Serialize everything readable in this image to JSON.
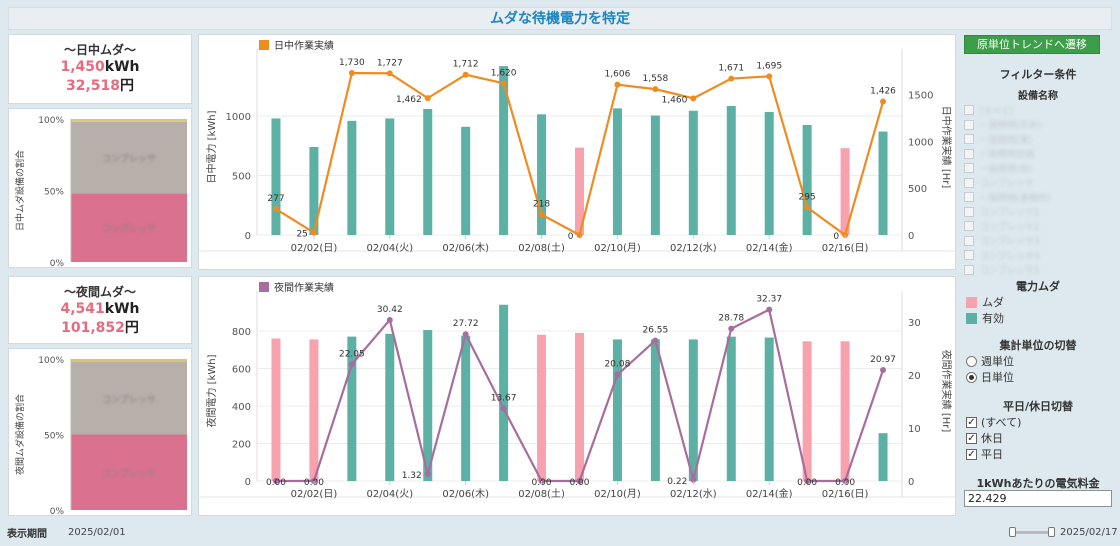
{
  "page": {
    "title": "ムダな待機電力を特定"
  },
  "day_summary": {
    "title": "～日中ムダ～",
    "kwh": "1,450",
    "kwh_unit": "kWh",
    "yen": "32,518",
    "yen_unit": "円"
  },
  "night_summary": {
    "title": "～夜間ムダ～",
    "kwh": "4,541",
    "kwh_unit": "kWh",
    "yen": "101,852",
    "yen_unit": "円"
  },
  "day_ratio": {
    "ylabel": "日中ムダ設備の割合",
    "ticks": [
      "100%",
      "50%",
      "0%"
    ],
    "segments": [
      {
        "label": "コンプレッサ",
        "value": 0.48,
        "color": "#d9718f"
      },
      {
        "label": "コンプレッサ",
        "value": 0.5,
        "color": "#b7afaa"
      },
      {
        "label": "",
        "value": 0.01,
        "color": "#c8c7a0"
      },
      {
        "label": "",
        "value": 0.01,
        "color": "#e8c24d"
      }
    ]
  },
  "night_ratio": {
    "ylabel": "夜間ムダ設備の割合",
    "ticks": [
      "100%",
      "50%",
      "0%"
    ],
    "segments": [
      {
        "label": "コンプレッサ",
        "value": 0.5,
        "color": "#d9718f"
      },
      {
        "label": "コンプレッサ",
        "value": 0.48,
        "color": "#b7afaa"
      },
      {
        "label": "",
        "value": 0.01,
        "color": "#c8c7a0"
      },
      {
        "label": "",
        "value": 0.01,
        "color": "#e8c24d"
      }
    ]
  },
  "chart_data": [
    {
      "type": "bar",
      "name": "day",
      "title": "日中作業実績",
      "legend_color": "#ef8c21",
      "line_color": "#ef8c21",
      "ylabel": "日中電力 [kWh]",
      "y2label": "日中作業実績 [Hr]",
      "ylim": [
        0,
        1480
      ],
      "yticks": [
        0,
        500,
        1000
      ],
      "y2lim": [
        0,
        1880
      ],
      "y2ticks": [
        0,
        500,
        1000,
        1500
      ],
      "xtick_labels": [
        {
          "i": 2,
          "label": "02/02(日)"
        },
        {
          "i": 4,
          "label": "02/04(火)"
        },
        {
          "i": 6,
          "label": "02/06(木)"
        },
        {
          "i": 8,
          "label": "02/08(土)"
        },
        {
          "i": 10,
          "label": "02/10(月)"
        },
        {
          "i": 12,
          "label": "02/12(水)"
        },
        {
          "i": 14,
          "label": "02/14(金)"
        },
        {
          "i": 16,
          "label": "02/16(日)"
        }
      ],
      "days": [
        "02/01",
        "02/02",
        "02/03",
        "02/04",
        "02/05",
        "02/06",
        "02/07",
        "02/08",
        "02/09",
        "02/10",
        "02/11",
        "02/12",
        "02/13",
        "02/14",
        "02/15",
        "02/16",
        "02/17"
      ],
      "bars": [
        980,
        740,
        960,
        980,
        1060,
        910,
        1420,
        1015,
        735,
        1065,
        1005,
        1045,
        1085,
        1035,
        925,
        730,
        870
      ],
      "bar_types": [
        "有効",
        "有効",
        "有効",
        "有効",
        "有効",
        "有効",
        "有効",
        "有効",
        "ムダ",
        "有効",
        "有効",
        "有効",
        "有効",
        "有効",
        "有効",
        "ムダ",
        "有効"
      ],
      "line": [
        277,
        25,
        1730,
        1727,
        1462,
        1712,
        1620,
        218,
        0,
        1606,
        1558,
        1460,
        1671,
        1695,
        295,
        0,
        1426
      ],
      "line_labels": [
        "277",
        "25",
        "1,730",
        "1,727",
        "1,462",
        "1,712",
        "1,620",
        "218",
        "0",
        "1,606",
        "1,558",
        "1,460",
        "1,671",
        "1,695",
        "295",
        "0",
        "1,426"
      ]
    },
    {
      "type": "bar",
      "name": "night",
      "title": "夜間作業実績",
      "legend_color": "#a76d9f",
      "line_color": "#a76d9f",
      "ylabel": "夜間電力 [kWh]",
      "y2label": "夜間作業実績 [Hr]",
      "ylim": [
        0,
        960
      ],
      "yticks": [
        0,
        200,
        400,
        600,
        800
      ],
      "y2lim": [
        0,
        34
      ],
      "y2ticks": [
        0,
        10,
        20,
        30
      ],
      "xtick_labels": [
        {
          "i": 2,
          "label": "02/02(日)"
        },
        {
          "i": 4,
          "label": "02/04(火)"
        },
        {
          "i": 6,
          "label": "02/06(木)"
        },
        {
          "i": 8,
          "label": "02/08(土)"
        },
        {
          "i": 10,
          "label": "02/10(月)"
        },
        {
          "i": 12,
          "label": "02/12(水)"
        },
        {
          "i": 14,
          "label": "02/14(金)"
        },
        {
          "i": 16,
          "label": "02/16(日)"
        }
      ],
      "days": [
        "02/01",
        "02/02",
        "02/03",
        "02/04",
        "02/05",
        "02/06",
        "02/07",
        "02/08",
        "02/09",
        "02/10",
        "02/11",
        "02/12",
        "02/13",
        "02/14",
        "02/15",
        "02/16",
        "02/17"
      ],
      "bars": [
        760,
        755,
        770,
        785,
        805,
        775,
        940,
        780,
        790,
        755,
        755,
        755,
        770,
        765,
        745,
        745,
        255
      ],
      "bar_types": [
        "ムダ",
        "ムダ",
        "有効",
        "有効",
        "有効",
        "有効",
        "有効",
        "ムダ",
        "ムダ",
        "有効",
        "有効",
        "有効",
        "有効",
        "有効",
        "ムダ",
        "ムダ",
        "有効"
      ],
      "line": [
        0.0,
        0.0,
        22.05,
        30.42,
        1.32,
        27.72,
        13.67,
        0.0,
        0.0,
        20.08,
        26.55,
        0.22,
        28.78,
        32.37,
        0.0,
        0.0,
        20.97
      ],
      "line_labels": [
        "0.00",
        "0.00",
        "22.05",
        "30.42",
        "1.32",
        "27.72",
        "13.67",
        "0.00",
        "0.00",
        "20.08",
        "26.55",
        "0.22",
        "28.78",
        "32.37",
        "0.00",
        "0.00",
        "20.97"
      ]
    }
  ],
  "right_pane": {
    "trend_button": "原単位トレンドへ遷移",
    "filter_title": "フィルター条件",
    "equipment_title": "設備名称",
    "equipment_items": [
      "(すべて)",
      "一般照明(中央)",
      "一般照明(東)",
      "一般照明空調",
      "一般照明(西)",
      "コンプレッサ",
      "一般照明(事務所)",
      "コンプレッサ1",
      "コンプレッサ2",
      "コンプレッサ3",
      "コンプレッサ4",
      "コンプレッサ5"
    ],
    "power_title": "電力ムダ",
    "legend": [
      {
        "label": "ムダ",
        "color": "#f7a2ad"
      },
      {
        "label": "有効",
        "color": "#5cb0a4"
      }
    ],
    "unit_title": "集計単位の切替",
    "unit_options": [
      {
        "label": "週単位",
        "selected": false
      },
      {
        "label": "日単位",
        "selected": true
      }
    ],
    "daytype_title": "平日/休日切替",
    "daytype_options": [
      {
        "label": "(すべて)",
        "checked": true
      },
      {
        "label": "休日",
        "checked": true
      },
      {
        "label": "平日",
        "checked": true
      }
    ],
    "price_title": "1kWhあたりの電気料金",
    "price_value": "22.429"
  },
  "footer": {
    "label": "表示期間",
    "start": "2025/02/01",
    "end": "2025/02/17"
  },
  "colors": {
    "waste": "#f7a2ad",
    "valid": "#5cb0a4"
  }
}
